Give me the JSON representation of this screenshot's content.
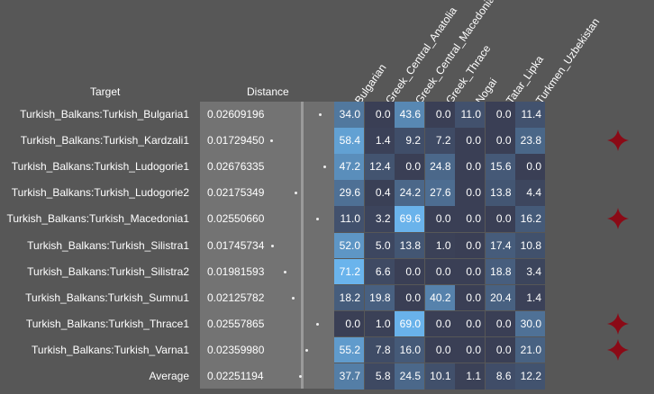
{
  "chart_data": {
    "type": "heatmap",
    "row_header": "Target",
    "distance_header": "Distance",
    "columns": [
      "Bulgarian",
      "Greek_Central_Anatolia",
      "Greek_Central_Macedonia",
      "Greek_Thrace",
      "Nogai",
      "Tatar_Lipka",
      "Turkmen_Uzbekistan"
    ],
    "rows": [
      {
        "target": "Turkish_Balkans:Turkish_Bulgaria1",
        "distance": "0.02609196",
        "values": [
          34.0,
          0.0,
          43.6,
          0.0,
          11.0,
          0.0,
          11.4
        ],
        "flagged": false
      },
      {
        "target": "Turkish_Balkans:Turkish_Kardzali1",
        "distance": "0.01729450",
        "values": [
          58.4,
          1.4,
          9.2,
          7.2,
          0.0,
          0.0,
          23.8
        ],
        "flagged": true
      },
      {
        "target": "Turkish_Balkans:Turkish_Ludogorie1",
        "distance": "0.02676335",
        "values": [
          47.2,
          12.4,
          0.0,
          24.8,
          0.0,
          15.6,
          0.0
        ],
        "flagged": false
      },
      {
        "target": "Turkish_Balkans:Turkish_Ludogorie2",
        "distance": "0.02175349",
        "values": [
          29.6,
          0.4,
          24.2,
          27.6,
          0.0,
          13.8,
          4.4
        ],
        "flagged": false
      },
      {
        "target": "Turkish_Balkans:Turkish_Macedonia1",
        "distance": "0.02550660",
        "values": [
          11.0,
          3.2,
          69.6,
          0.0,
          0.0,
          0.0,
          16.2
        ],
        "flagged": true
      },
      {
        "target": "Turkish_Balkans:Turkish_Silistra1",
        "distance": "0.01745734",
        "values": [
          52.0,
          5.0,
          13.8,
          1.0,
          0.0,
          17.4,
          10.8
        ],
        "flagged": false
      },
      {
        "target": "Turkish_Balkans:Turkish_Silistra2",
        "distance": "0.01981593",
        "values": [
          71.2,
          6.6,
          0.0,
          0.0,
          0.0,
          18.8,
          3.4
        ],
        "flagged": false
      },
      {
        "target": "Turkish_Balkans:Turkish_Sumnu1",
        "distance": "0.02125782",
        "values": [
          18.2,
          19.8,
          0.0,
          40.2,
          0.0,
          20.4,
          1.4
        ],
        "flagged": false
      },
      {
        "target": "Turkish_Balkans:Turkish_Thrace1",
        "distance": "0.02557865",
        "values": [
          0.0,
          1.0,
          69.0,
          0.0,
          0.0,
          0.0,
          30.0
        ],
        "flagged": true
      },
      {
        "target": "Turkish_Balkans:Turkish_Varna1",
        "distance": "0.02359980",
        "values": [
          55.2,
          7.8,
          16.0,
          0.0,
          0.0,
          0.0,
          21.0
        ],
        "flagged": true
      },
      {
        "target": "Average",
        "distance": "0.02251194",
        "values": [
          37.7,
          5.8,
          24.5,
          10.1,
          1.1,
          8.6,
          12.2
        ],
        "flagged": false
      }
    ],
    "distance_range": [
      0.017,
      0.027
    ],
    "color_scale": {
      "low": "#3a3f55",
      "high": "#6ab4ec"
    },
    "marker_color": "#8b0a16"
  }
}
